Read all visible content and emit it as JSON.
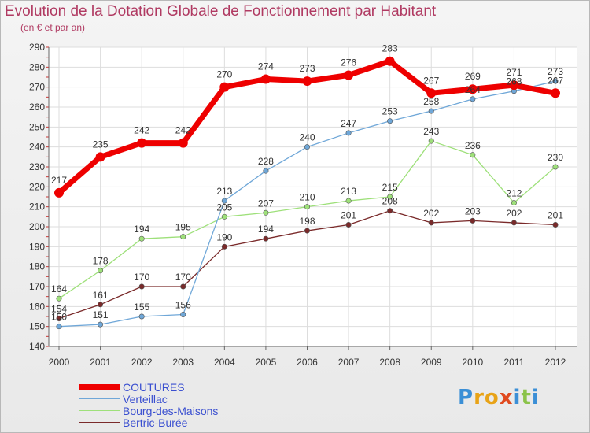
{
  "title": "Evolution de la Dotation Globale de Fonctionnement par Habitant",
  "subtitle": "(en € et par an)",
  "logo": {
    "letters": [
      "P",
      "r",
      "o",
      "x",
      "i",
      "t",
      "i"
    ],
    "colors": [
      "#3b8fd6",
      "#e8a317",
      "#e8a317",
      "#e04a1f",
      "#3b8fd6",
      "#8bc34a",
      "#3b8fd6"
    ]
  },
  "chart_data": {
    "type": "line",
    "x": [
      "2000",
      "2001",
      "2002",
      "2003",
      "2004",
      "2005",
      "2006",
      "2007",
      "2008",
      "2009",
      "2010",
      "2011",
      "2012"
    ],
    "ylim": [
      140,
      290
    ],
    "yticks": [
      "140",
      "150",
      "160",
      "170",
      "180",
      "190",
      "200",
      "210",
      "220",
      "230",
      "240",
      "250",
      "260",
      "270",
      "280",
      "290"
    ],
    "grid": true,
    "legend_position": "bottom-left",
    "series": [
      {
        "name": "COUTURES",
        "color": "#ee0000",
        "values": [
          217,
          235,
          242,
          242,
          270,
          274,
          273,
          276,
          283,
          267,
          269,
          271,
          267
        ]
      },
      {
        "name": "Verteillac",
        "color": "#6fa7d8",
        "values": [
          150,
          151,
          155,
          156,
          213,
          228,
          240,
          247,
          253,
          258,
          264,
          268,
          273
        ]
      },
      {
        "name": "Bourg-des-Maisons",
        "color": "#9ee07a",
        "values": [
          164,
          178,
          194,
          195,
          205,
          207,
          210,
          213,
          215,
          243,
          236,
          212,
          230
        ]
      },
      {
        "name": "Bertric-Burée",
        "color": "#7a2a2a",
        "values": [
          154,
          161,
          170,
          170,
          190,
          194,
          198,
          201,
          208,
          202,
          203,
          202,
          201
        ]
      }
    ]
  }
}
